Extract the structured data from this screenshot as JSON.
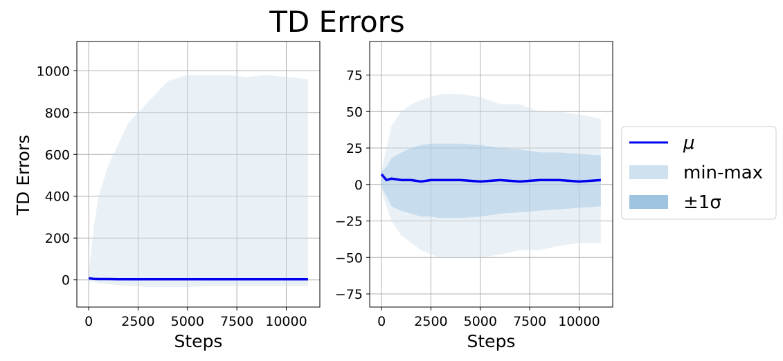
{
  "title": "TD Errors",
  "ylabel": "TD Errors",
  "legend": {
    "placement": "outside-right",
    "items": [
      {
        "label": "μ",
        "kind": "line",
        "color": "#0000ee"
      },
      {
        "label": "min-max",
        "kind": "patch",
        "color": "#cfe1ee"
      },
      {
        "label": "±1σ",
        "kind": "patch",
        "color": "#9ec4e0"
      }
    ]
  },
  "colors": {
    "mean": "#0000ee",
    "minmax": "#cfe1ee",
    "std": "#9ec4e0",
    "grid": "#b0b0b0"
  },
  "chart_data": [
    {
      "type": "line",
      "xlabel": "Steps",
      "ylabel": "TD Errors",
      "grid": true,
      "xlim": [
        -600,
        11700
      ],
      "ylim": [
        -130,
        1140
      ],
      "xticks": [
        0,
        2500,
        5000,
        7500,
        10000
      ],
      "xtick_labels": [
        "0",
        "2500",
        "5000",
        "7500",
        "10000"
      ],
      "yticks": [
        0,
        200,
        400,
        600,
        800,
        1000
      ],
      "ytick_labels": [
        "0",
        "200",
        "400",
        "600",
        "800",
        "1000"
      ],
      "x": [
        0,
        250,
        500,
        1000,
        1500,
        2000,
        2500,
        3000,
        4000,
        5000,
        6000,
        7000,
        8000,
        9000,
        10000,
        11100
      ],
      "series": [
        {
          "name": "μ",
          "values": [
            8,
            5,
            4,
            4,
            3,
            3,
            3,
            3,
            3,
            3,
            3,
            3,
            3,
            3,
            3,
            3
          ]
        },
        {
          "name": "min-max upper",
          "values": [
            20,
            250,
            400,
            550,
            650,
            750,
            800,
            850,
            950,
            980,
            980,
            980,
            970,
            980,
            970,
            960
          ]
        },
        {
          "name": "min-max lower",
          "values": [
            -5,
            -10,
            -15,
            -20,
            -25,
            -30,
            -30,
            -35,
            -35,
            -35,
            -30,
            -30,
            -30,
            -30,
            -30,
            -30
          ]
        }
      ]
    },
    {
      "type": "line",
      "xlabel": "Steps",
      "ylabel": "",
      "grid": true,
      "xlim": [
        -600,
        11700
      ],
      "ylim": [
        -84,
        98
      ],
      "xticks": [
        0,
        2500,
        5000,
        7500,
        10000
      ],
      "xtick_labels": [
        "0",
        "2500",
        "5000",
        "7500",
        "10000"
      ],
      "yticks": [
        -75,
        -50,
        -25,
        0,
        25,
        50,
        75
      ],
      "ytick_labels": [
        "−75",
        "−50",
        "−25",
        "0",
        "25",
        "50",
        "75"
      ],
      "x": [
        0,
        250,
        500,
        1000,
        1500,
        2000,
        2500,
        3000,
        4000,
        5000,
        6000,
        7000,
        8000,
        9000,
        10000,
        11100
      ],
      "series": [
        {
          "name": "μ",
          "values": [
            7,
            3,
            4,
            3,
            3,
            2,
            3,
            3,
            3,
            2,
            3,
            2,
            3,
            3,
            2,
            3
          ]
        },
        {
          "name": "min-max upper",
          "values": [
            10,
            25,
            40,
            50,
            55,
            58,
            60,
            62,
            62,
            60,
            55,
            55,
            50,
            50,
            48,
            45
          ]
        },
        {
          "name": "min-max lower",
          "values": [
            -5,
            -15,
            -25,
            -35,
            -40,
            -45,
            -48,
            -50,
            -50,
            -50,
            -48,
            -45,
            -45,
            -42,
            -40,
            -40
          ]
        },
        {
          "name": "+1σ",
          "values": [
            9,
            12,
            18,
            22,
            25,
            27,
            28,
            28,
            28,
            27,
            25,
            24,
            22,
            22,
            21,
            20
          ]
        },
        {
          "name": "−1σ",
          "values": [
            -2,
            -8,
            -15,
            -18,
            -20,
            -22,
            -22,
            -23,
            -23,
            -22,
            -20,
            -19,
            -18,
            -17,
            -16,
            -15
          ]
        }
      ]
    }
  ]
}
